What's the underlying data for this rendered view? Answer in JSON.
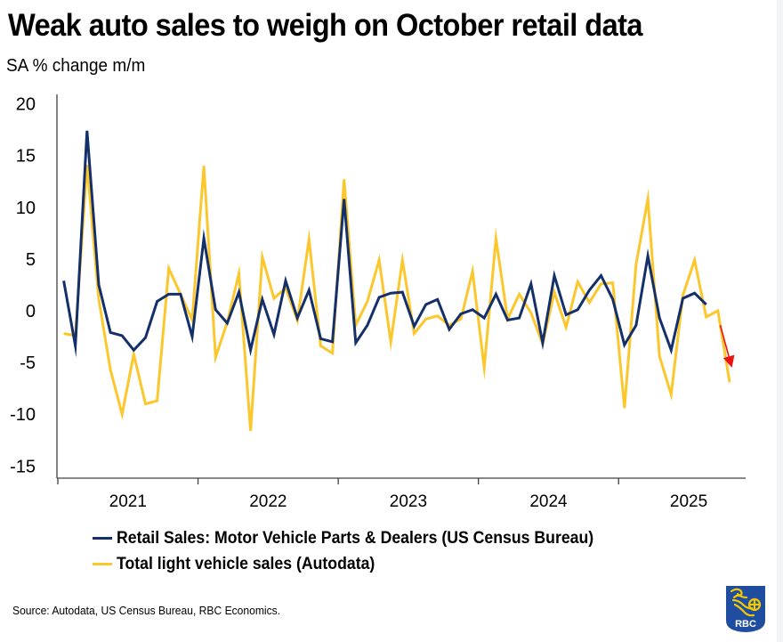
{
  "title": "Weak auto sales to weigh on October retail data",
  "subtitle": "SA % change m/m",
  "source": "Source: Autodata, US Census Bureau, RBC Economics.",
  "logo": {
    "text": "RBC",
    "icon": "rbc-lion-shield-icon",
    "colors": {
      "shield": "#1f4ea1",
      "lion": "#f6c800"
    }
  },
  "chart_data": {
    "type": "line",
    "title": "Weak auto sales to weigh on October retail data",
    "subtitle": "SA % change m/m",
    "xlabel": "",
    "ylabel": "SA % change m/m",
    "ylim": [
      -17,
      20
    ],
    "yticks": [
      20,
      15,
      10,
      5,
      0,
      -5,
      -10,
      -15
    ],
    "x_start": "2021-01",
    "x_range_months": [
      0,
      59
    ],
    "xtick_labels": [
      "2021",
      "2022",
      "2023",
      "2024",
      "2025"
    ],
    "grid": false,
    "legend_position": "bottom",
    "annotations": [
      {
        "type": "arrow",
        "color": "#ee1111",
        "from": {
          "month_index": 56.7,
          "value": -1.4
        },
        "to": {
          "month_index": 57.7,
          "value": -5.5
        },
        "meaning": "downward direction"
      }
    ],
    "series": [
      {
        "name": "Retail Sales: Motor Vehicle Parts & Dealers (US Census Bureau)",
        "color": "#14306a",
        "values": [
          2.9,
          -3.4,
          17.4,
          2.5,
          -2.1,
          -2.4,
          -3.8,
          -2.6,
          0.9,
          1.6,
          1.6,
          -2.5,
          7.0,
          0.1,
          -1.2,
          1.8,
          -3.8,
          1.1,
          -2.3,
          2.9,
          -0.7,
          2.0,
          -2.7,
          -3.0,
          10.8,
          -3.1,
          -1.4,
          1.3,
          1.7,
          1.8,
          -1.5,
          0.6,
          1.1,
          -1.8,
          -0.3,
          0.1,
          -0.7,
          1.6,
          -0.9,
          -0.7,
          2.6,
          -3.1,
          3.4,
          -0.4,
          0.1,
          2.0,
          3.4,
          1.1,
          -3.3,
          -1.4,
          5.3,
          -0.7,
          -3.8,
          1.2,
          1.7,
          0.6
        ]
      },
      {
        "name": "Total light vehicle sales (Autodata)",
        "color": "#fcc72c",
        "values": [
          -2.2,
          -2.4,
          14.1,
          1.1,
          -5.7,
          -10.0,
          -4.2,
          -9.0,
          -8.7,
          4.1,
          1.6,
          -0.9,
          14.0,
          -4.5,
          -1.1,
          3.6,
          -11.6,
          5.2,
          1.2,
          2.2,
          -0.9,
          6.9,
          -3.4,
          -4.1,
          12.7,
          -1.4,
          0.9,
          4.9,
          -3.0,
          4.9,
          -2.2,
          -0.8,
          -0.5,
          -1.4,
          -0.8,
          3.8,
          -5.5,
          7.0,
          -0.8,
          1.6,
          -0.2,
          -3.2,
          1.8,
          -1.6,
          2.8,
          0.8,
          2.6,
          2.7,
          -9.4,
          4.5,
          10.8,
          -4.4,
          -8.1,
          1.5,
          4.9,
          -0.6,
          0.0,
          -6.9
        ]
      }
    ]
  }
}
